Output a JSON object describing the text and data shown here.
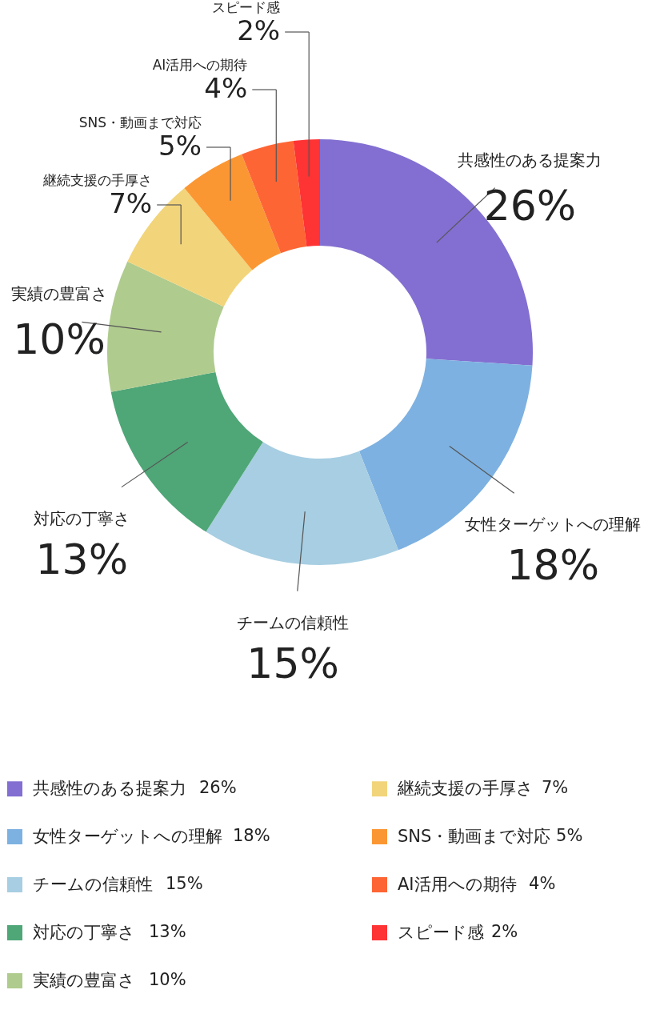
{
  "chart_data": {
    "type": "donut",
    "categories": [
      "共感性のある提案力",
      "女性ターゲットへの理解",
      "チームの信頼性",
      "対応の丁寧さ",
      "実績の豊富さ",
      "継続支援の手厚さ",
      "SNS・動画まで対応",
      "AI活用への期待",
      "スピード感"
    ],
    "values": [
      26,
      18,
      15,
      13,
      10,
      7,
      5,
      4,
      2
    ],
    "value_labels": [
      "26%",
      "18%",
      "15%",
      "13%",
      "10%",
      "7%",
      "5%",
      "4%",
      "2%"
    ],
    "colors": [
      "#836fd1",
      "#7db1e1",
      "#a7cee2",
      "#4fa677",
      "#afcb8e",
      "#f2d47a",
      "#fb9733",
      "#fe6534",
      "#fe3334"
    ],
    "legend": "bottom"
  }
}
